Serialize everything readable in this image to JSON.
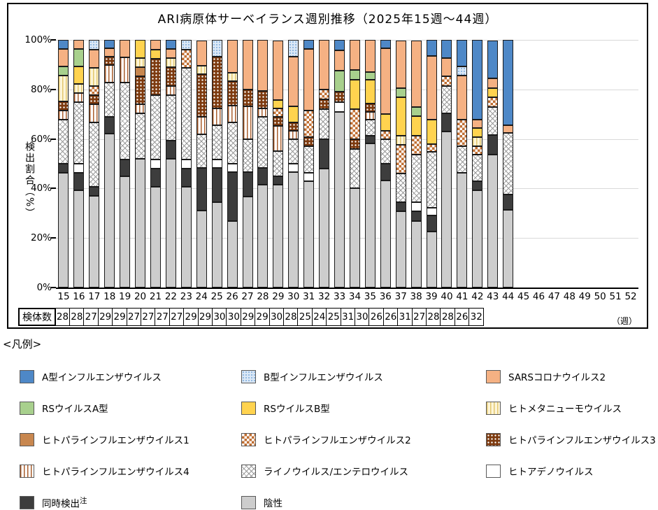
{
  "legend": {
    "title": "<凡例>",
    "co_detect_note": "注"
  },
  "chart_data": {
    "type": "bar",
    "subtype": "100pct-stacked-bar",
    "title": "ARI病原体サーベイランス週別推移（2025年15週～44週）",
    "y_label": "検出割合（%）",
    "y_ticks": [
      "100%",
      "80%",
      "60%",
      "40%",
      "20%",
      "0%"
    ],
    "ylim": [
      0,
      100
    ],
    "grid": "horizontal",
    "x_axis_weeks": [
      15,
      16,
      17,
      18,
      19,
      20,
      21,
      22,
      23,
      24,
      25,
      26,
      27,
      28,
      29,
      30,
      31,
      32,
      33,
      34,
      35,
      36,
      37,
      38,
      39,
      40,
      41,
      42,
      43,
      44,
      45,
      46,
      47,
      48,
      49,
      50,
      51,
      52
    ],
    "x_unit_label": "（週）",
    "samples_label": "検体数",
    "legend_position": "bottom",
    "series": [
      {
        "id": "flu_a",
        "label": "A型インフルエンザウイルス",
        "pattern": "solid",
        "color": "#4e88c7"
      },
      {
        "id": "flu_b",
        "label": "B型インフルエンザウイルス",
        "pattern": "dots-light-blue",
        "color": "#dbe8f6"
      },
      {
        "id": "sars2",
        "label": "SARSコロナウイルス2",
        "pattern": "solid",
        "color": "#f5b183"
      },
      {
        "id": "rs_a",
        "label": "RSウイルスA型",
        "pattern": "solid",
        "color": "#a8d08d"
      },
      {
        "id": "rs_b",
        "label": "RSウイルスB型",
        "pattern": "solid",
        "color": "#ffd34f"
      },
      {
        "id": "hmpv",
        "label": "ヒトメタニューモウイルス",
        "pattern": "stripes-pale-yellow",
        "color": "#fdf5d8"
      },
      {
        "id": "hpiv1",
        "label": "ヒトパラインフルエンザウイルス1",
        "pattern": "solid",
        "color": "#c8874f"
      },
      {
        "id": "hpiv2",
        "label": "ヒトパラインフルエンザウイルス2",
        "pattern": "checker-orange",
        "color": "#c06f33"
      },
      {
        "id": "hpiv3",
        "label": "ヒトパラインフルエンザウイルス3",
        "pattern": "dots-dark-brown",
        "color": "#7d3a0f"
      },
      {
        "id": "hpiv4",
        "label": "ヒトパラインフルエンザウイルス4",
        "pattern": "stripes-brown",
        "color": "#aa5f2f"
      },
      {
        "id": "rhino",
        "label": "ライノウイルス/エンテロウイルス",
        "pattern": "crosshatch-gray",
        "color": "#999999"
      },
      {
        "id": "adeno",
        "label": "ヒトアデノウイルス",
        "pattern": "solid",
        "color": "#ffffff"
      },
      {
        "id": "codetect",
        "label": "同時検出",
        "pattern": "solid",
        "color": "#3d3d3d",
        "note": "注"
      },
      {
        "id": "negative",
        "label": "陰性",
        "pattern": "solid",
        "color": "#cdcdcd"
      }
    ],
    "stack_order_bottom_to_top": [
      "negative",
      "codetect",
      "adeno",
      "rhino",
      "hpiv4",
      "hpiv3",
      "hpiv2",
      "hpiv1",
      "hmpv",
      "rs_b",
      "rs_a",
      "sars2",
      "flu_b",
      "flu_a"
    ],
    "weeks": [
      {
        "week": 15,
        "samples": 28,
        "values": {
          "negative": 46.4,
          "codetect": 3.6,
          "rhino": 17.9,
          "hpiv4": 3.6,
          "hpiv3": 3.6,
          "hmpv": 10.7,
          "rs_a": 3.6,
          "sars2": 7.1,
          "flu_a": 3.6
        }
      },
      {
        "week": 16,
        "samples": 28,
        "values": {
          "negative": 39.3,
          "codetect": 7.1,
          "adeno": 3.6,
          "rhino": 25.0,
          "hpiv4": 3.6,
          "hmpv": 3.6,
          "rs_b": 7.1,
          "rs_a": 7.1,
          "sars2": 3.6
        }
      },
      {
        "week": 17,
        "samples": 27,
        "values": {
          "negative": 37.0,
          "codetect": 3.7,
          "rhino": 25.9,
          "hpiv4": 7.4,
          "hpiv3": 3.7,
          "hpiv2": 3.7,
          "hmpv": 7.4,
          "sars2": 7.4,
          "flu_b": 3.7
        }
      },
      {
        "week": 18,
        "samples": 29,
        "values": {
          "negative": 62.1,
          "codetect": 6.9,
          "rhino": 13.8,
          "hpiv4": 6.9,
          "hpiv3": 3.4,
          "sars2": 3.4,
          "flu_a": 3.4
        }
      },
      {
        "week": 19,
        "samples": 29,
        "values": {
          "negative": 44.8,
          "codetect": 6.9,
          "rhino": 31.0,
          "hpiv4": 10.3,
          "sars2": 6.9
        }
      },
      {
        "week": 20,
        "samples": 27,
        "values": {
          "negative": 51.9,
          "rhino": 18.5,
          "hpiv4": 3.7,
          "hpiv3": 11.1,
          "hpiv1": 3.7,
          "hmpv": 3.7,
          "rs_b": 7.4
        }
      },
      {
        "week": 21,
        "samples": 27,
        "values": {
          "negative": 40.7,
          "codetect": 7.4,
          "adeno": 3.7,
          "rhino": 25.9,
          "hpiv3": 14.8,
          "rs_b": 3.7,
          "sars2": 3.7
        }
      },
      {
        "week": 22,
        "samples": 27,
        "values": {
          "negative": 51.9,
          "codetect": 7.4,
          "rhino": 18.5,
          "hpiv4": 3.7,
          "hpiv3": 7.4,
          "hmpv": 3.7,
          "sars2": 3.7,
          "flu_a": 3.7
        }
      },
      {
        "week": 23,
        "samples": 27,
        "values": {
          "negative": 40.7,
          "codetect": 7.4,
          "adeno": 3.7,
          "rhino": 37.0,
          "hpiv2": 7.4,
          "flu_b": 3.7
        }
      },
      {
        "week": 24,
        "samples": 29,
        "values": {
          "negative": 31.0,
          "codetect": 17.2,
          "rhino": 13.8,
          "hpiv4": 6.9,
          "hpiv3": 17.2,
          "hmpv": 3.4,
          "sars2": 10.3
        }
      },
      {
        "week": 25,
        "samples": 29,
        "values": {
          "negative": 34.5,
          "codetect": 13.8,
          "adeno": 3.4,
          "rhino": 13.8,
          "hpiv4": 6.9,
          "hpiv3": 20.7,
          "flu_b": 6.9
        }
      },
      {
        "week": 26,
        "samples": 30,
        "values": {
          "negative": 26.7,
          "codetect": 20.0,
          "adeno": 3.3,
          "rhino": 16.7,
          "hpiv4": 6.7,
          "hpiv3": 10.0,
          "hmpv": 3.3,
          "sars2": 13.3
        }
      },
      {
        "week": 27,
        "samples": 30,
        "values": {
          "negative": 36.7,
          "codetect": 10.0,
          "rhino": 13.3,
          "hpiv4": 13.3,
          "hpiv3": 6.7,
          "sars2": 20.0
        }
      },
      {
        "week": 28,
        "samples": 29,
        "values": {
          "negative": 41.4,
          "codetect": 6.9,
          "rhino": 20.7,
          "hpiv4": 3.4,
          "hpiv3": 6.9,
          "sars2": 20.7
        }
      },
      {
        "week": 29,
        "samples": 29,
        "values": {
          "negative": 41.4,
          "codetect": 3.4,
          "rhino": 10.3,
          "hpiv4": 10.3,
          "hpiv3": 3.4,
          "hpiv2": 3.4,
          "rs_b": 3.4,
          "sars2": 24.1
        }
      },
      {
        "week": 30,
        "samples": 30,
        "values": {
          "negative": 46.7,
          "adeno": 3.3,
          "rhino": 10.0,
          "hpiv4": 3.3,
          "hpiv3": 3.3,
          "rs_b": 6.7,
          "sars2": 20.0,
          "flu_b": 6.7
        }
      },
      {
        "week": 31,
        "samples": 28,
        "values": {
          "negative": 42.9,
          "adeno": 3.6,
          "rhino": 10.7,
          "hpiv3": 3.6,
          "hpiv2": 10.7,
          "sars2": 25.0,
          "flu_a": 3.6
        }
      },
      {
        "week": 32,
        "samples": 25,
        "values": {
          "negative": 48.0,
          "codetect": 12.0,
          "rhino": 12.0,
          "hpiv3": 4.0,
          "hpiv2": 4.0,
          "sars2": 20.0
        }
      },
      {
        "week": 33,
        "samples": 24,
        "values": {
          "negative": 70.8,
          "adeno": 4.2,
          "hpiv3": 4.2,
          "rs_a": 8.3,
          "sars2": 8.3,
          "flu_a": 4.2
        }
      },
      {
        "week": 34,
        "samples": 25,
        "values": {
          "negative": 40.0,
          "rhino": 16.0,
          "hpiv3": 4.0,
          "hpiv2": 12.0,
          "rs_b": 12.0,
          "rs_a": 4.0,
          "sars2": 12.0
        }
      },
      {
        "week": 35,
        "samples": 31,
        "values": {
          "negative": 58.1,
          "codetect": 3.2,
          "rhino": 6.5,
          "hpiv4": 3.2,
          "hpiv3": 3.2,
          "rs_b": 9.7,
          "rs_a": 3.2,
          "sars2": 12.9
        }
      },
      {
        "week": 36,
        "samples": 30,
        "values": {
          "negative": 43.3,
          "codetect": 6.7,
          "rhino": 10.0,
          "hpiv2": 3.3,
          "rs_b": 6.7,
          "sars2": 26.7,
          "flu_a": 3.3
        }
      },
      {
        "week": 37,
        "samples": 26,
        "values": {
          "negative": 30.8,
          "codetect": 3.8,
          "rhino": 11.5,
          "hpiv2": 11.5,
          "hmpv": 3.8,
          "rs_b": 15.4,
          "rs_a": 3.8,
          "sars2": 19.2
        }
      },
      {
        "week": 38,
        "samples": 26,
        "values": {
          "negative": 26.9,
          "codetect": 3.8,
          "adeno": 3.8,
          "rhino": 19.2,
          "hpiv2": 7.7,
          "rs_b": 7.7,
          "rs_a": 3.8,
          "sars2": 26.9
        }
      },
      {
        "week": 39,
        "samples": 31,
        "values": {
          "negative": 22.6,
          "codetect": 6.5,
          "adeno": 3.2,
          "rhino": 22.6,
          "hpiv2": 3.2,
          "rs_b": 9.7,
          "sars2": 25.8,
          "flu_a": 6.5
        }
      },
      {
        "week": 40,
        "samples": 27,
        "values": {
          "negative": 63.0,
          "codetect": 7.4,
          "rhino": 11.1,
          "hpiv2": 3.7,
          "sars2": 7.4,
          "flu_a": 7.4
        }
      },
      {
        "week": 41,
        "samples": 28,
        "values": {
          "negative": 46.4,
          "rhino": 10.7,
          "hpiv2": 10.7,
          "sars2": 17.9,
          "flu_b": 3.6,
          "flu_a": 10.7
        }
      },
      {
        "week": 42,
        "samples": 28,
        "values": {
          "negative": 39.3,
          "codetect": 3.6,
          "rhino": 10.7,
          "hpiv2": 3.6,
          "hmpv": 3.6,
          "rs_b": 3.6,
          "sars2": 3.6,
          "flu_a": 32.1
        }
      },
      {
        "week": 43,
        "samples": 26,
        "values": {
          "negative": 53.8,
          "codetect": 7.7,
          "rhino": 11.5,
          "hpiv2": 3.8,
          "rs_b": 3.8,
          "sars2": 3.8,
          "flu_a": 15.4
        }
      },
      {
        "week": 44,
        "samples": 32,
        "values": {
          "negative": 31.3,
          "codetect": 6.3,
          "rhino": 25.0,
          "sars2": 3.1,
          "flu_a": 34.4
        }
      }
    ]
  }
}
